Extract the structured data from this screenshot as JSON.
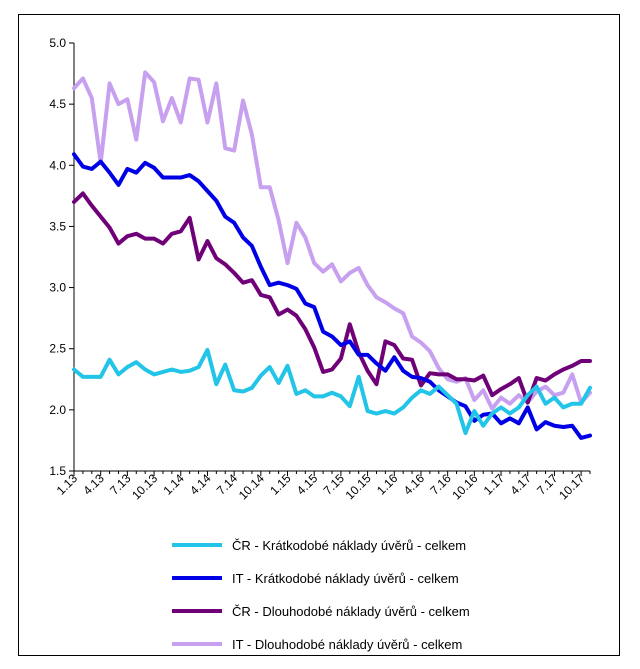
{
  "chart_data": {
    "type": "line",
    "title": "",
    "xlabel": "",
    "ylabel": "",
    "ylim": [
      1.5,
      5.0
    ],
    "yticks": [
      "5.0",
      "4.5",
      "4.0",
      "3.5",
      "3.0",
      "2.5",
      "2.0",
      "1.5"
    ],
    "ytick_values": [
      5.0,
      4.5,
      4.0,
      3.5,
      3.0,
      2.5,
      2.0,
      1.5
    ],
    "x_tick_labels": [
      "1.13",
      "4.13",
      "7.13",
      "10.13",
      "1.14",
      "4.14",
      "7.14",
      "10.14",
      "1.15",
      "4.15",
      "7.15",
      "10.15",
      "1.16",
      "4.16",
      "7.16",
      "10.16",
      "1.17",
      "4.17",
      "7.17",
      "10.17"
    ],
    "grid": false,
    "legend_position": "bottom",
    "series": [
      {
        "name": "ČR - Krátkodobé náklady úvěrů - celkem",
        "color": "#22c4e8",
        "values": [
          2.33,
          2.27,
          2.27,
          2.27,
          2.41,
          2.29,
          2.35,
          2.39,
          2.33,
          2.29,
          2.31,
          2.33,
          2.31,
          2.32,
          2.35,
          2.49,
          2.21,
          2.37,
          2.16,
          2.15,
          2.18,
          2.28,
          2.35,
          2.22,
          2.36,
          2.13,
          2.16,
          2.11,
          2.11,
          2.14,
          2.11,
          2.03,
          2.27,
          1.99,
          1.97,
          1.99,
          1.97,
          2.02,
          2.1,
          2.16,
          2.13,
          2.19,
          2.12,
          2.05,
          1.81,
          1.99,
          1.87,
          1.97,
          2.02,
          1.97,
          2.02,
          2.12,
          2.19,
          2.05,
          2.1,
          2.02,
          2.05,
          2.05,
          2.18
        ]
      },
      {
        "name": "IT - Krátkodobé náklady úvěrů - celkem",
        "color": "#0000e6",
        "values": [
          4.09,
          3.99,
          3.97,
          4.03,
          3.94,
          3.84,
          3.97,
          3.94,
          4.02,
          3.98,
          3.9,
          3.9,
          3.9,
          3.92,
          3.87,
          3.79,
          3.71,
          3.58,
          3.53,
          3.41,
          3.34,
          3.17,
          3.02,
          3.04,
          3.02,
          2.99,
          2.87,
          2.84,
          2.64,
          2.6,
          2.53,
          2.56,
          2.45,
          2.45,
          2.38,
          2.32,
          2.43,
          2.32,
          2.27,
          2.26,
          2.23,
          2.16,
          2.11,
          2.06,
          2.03,
          1.91,
          1.96,
          1.97,
          1.89,
          1.93,
          1.89,
          2.02,
          1.84,
          1.9,
          1.87,
          1.86,
          1.87,
          1.77,
          1.79
        ]
      },
      {
        "name": "ČR - Dlouhodobé náklady úvěrů - celkem",
        "color": "#700078",
        "values": [
          3.7,
          3.77,
          3.67,
          3.58,
          3.49,
          3.36,
          3.42,
          3.44,
          3.4,
          3.4,
          3.36,
          3.44,
          3.46,
          3.57,
          3.23,
          3.38,
          3.24,
          3.19,
          3.12,
          3.04,
          3.06,
          2.94,
          2.92,
          2.78,
          2.82,
          2.77,
          2.66,
          2.51,
          2.31,
          2.33,
          2.42,
          2.7,
          2.47,
          2.32,
          2.21,
          2.56,
          2.53,
          2.42,
          2.41,
          2.2,
          2.3,
          2.29,
          2.29,
          2.25,
          2.25,
          2.24,
          2.28,
          2.12,
          2.17,
          2.21,
          2.26,
          2.06,
          2.26,
          2.24,
          2.29,
          2.33,
          2.36,
          2.4,
          2.4
        ]
      },
      {
        "name": "IT - Dlouhodobé náklady úvěrů - celkem",
        "color": "#c8a0f0",
        "values": [
          4.63,
          4.71,
          4.55,
          4.02,
          4.67,
          4.5,
          4.54,
          4.21,
          4.76,
          4.68,
          4.36,
          4.55,
          4.35,
          4.71,
          4.7,
          4.35,
          4.67,
          4.14,
          4.12,
          4.53,
          4.25,
          3.82,
          3.82,
          3.55,
          3.2,
          3.53,
          3.41,
          3.2,
          3.13,
          3.19,
          3.05,
          3.12,
          3.16,
          3.02,
          2.92,
          2.88,
          2.83,
          2.79,
          2.6,
          2.55,
          2.48,
          2.34,
          2.25,
          2.23,
          2.26,
          2.08,
          2.16,
          2.01,
          2.1,
          2.05,
          2.12,
          2.06,
          2.15,
          2.19,
          2.12,
          2.14,
          2.29,
          2.06,
          2.14
        ]
      }
    ]
  }
}
